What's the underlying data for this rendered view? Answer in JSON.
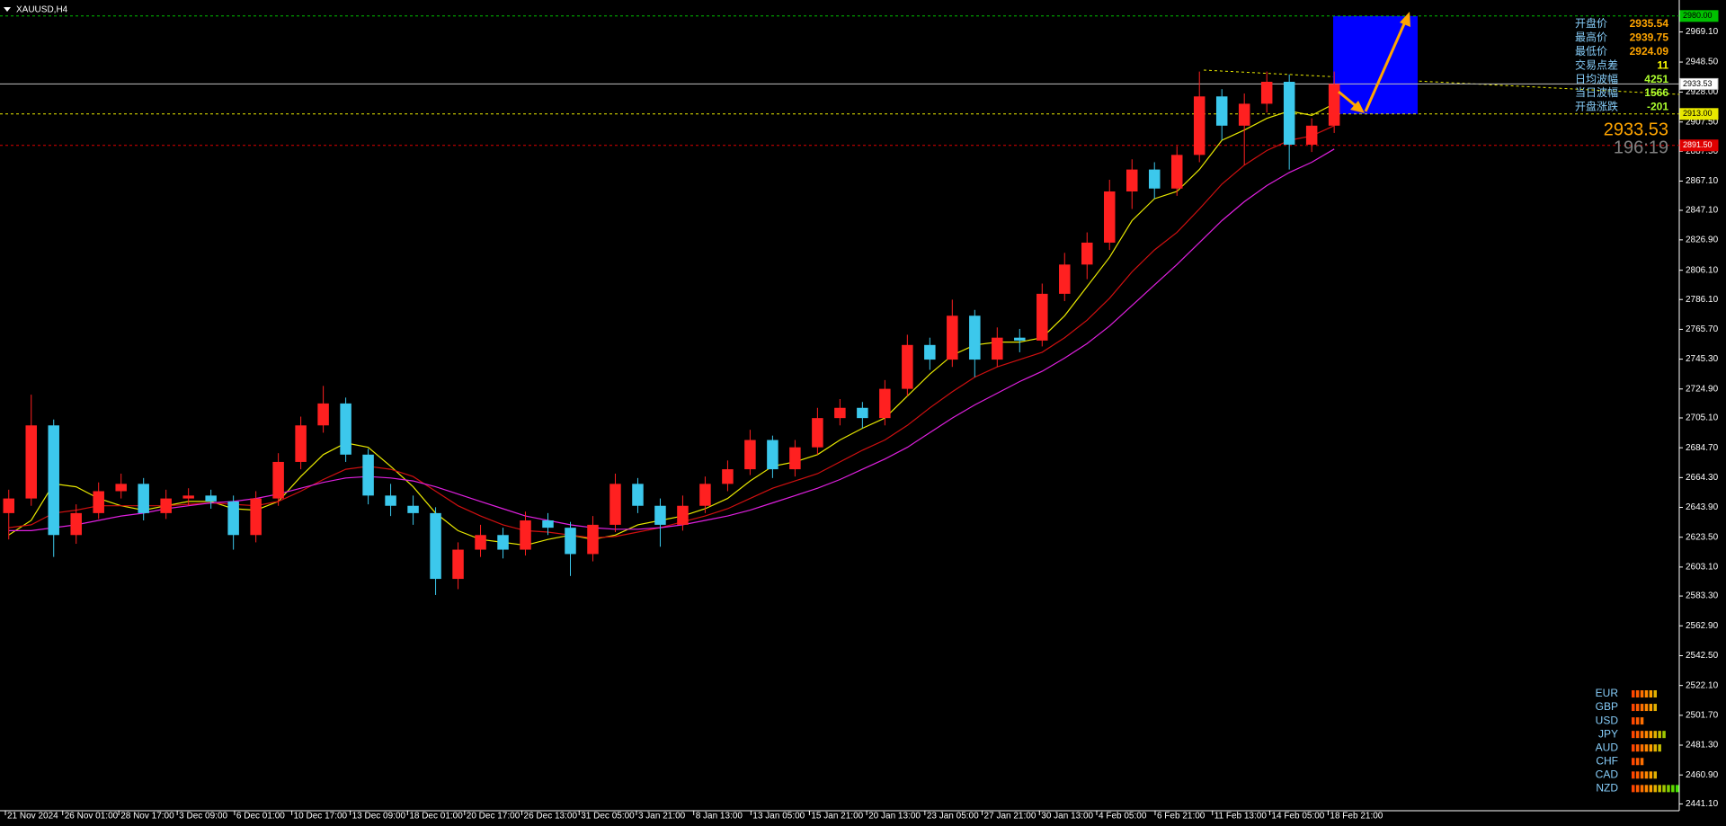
{
  "chart_data": {
    "type": "candlestick",
    "title": "XAUUSD,H4",
    "up_color": "#ff2020",
    "down_color": "#3cc8ec",
    "open": [
      2640,
      2650,
      2700,
      2625,
      2640,
      2655,
      2660,
      2640,
      2650,
      2652,
      2648,
      2625,
      2650,
      2675,
      2700,
      2715,
      2680,
      2652,
      2645,
      2640,
      2595,
      2615,
      2625,
      2615,
      2635,
      2630,
      2612,
      2632,
      2660,
      2645,
      2632,
      2645,
      2660,
      2670,
      2690,
      2670,
      2685,
      2705,
      2712,
      2705,
      2725,
      2755,
      2745,
      2775,
      2745,
      2760,
      2758,
      2790,
      2810,
      2825,
      2860,
      2875,
      2862,
      2885,
      2925,
      2905,
      2920,
      2935,
      2892,
      2905
    ],
    "high": [
      2656,
      2721,
      2704,
      2646,
      2661,
      2667,
      2664,
      2656,
      2657,
      2656,
      2652,
      2655,
      2681,
      2706,
      2727,
      2719,
      2684,
      2660,
      2652,
      2644,
      2620,
      2632,
      2630,
      2641,
      2640,
      2634,
      2638,
      2667,
      2664,
      2650,
      2652,
      2665,
      2676,
      2697,
      2693,
      2690,
      2712,
      2718,
      2716,
      2731,
      2762,
      2760,
      2786,
      2779,
      2767,
      2766,
      2797,
      2818,
      2832,
      2868,
      2882,
      2880,
      2891,
      2942,
      2930,
      2927,
      2942,
      2940,
      2910,
      2942
    ],
    "low": [
      2622,
      2645,
      2610,
      2619,
      2636,
      2650,
      2635,
      2636,
      2645,
      2643,
      2615,
      2620,
      2645,
      2670,
      2695,
      2675,
      2646,
      2638,
      2632,
      2584,
      2588,
      2610,
      2609,
      2611,
      2625,
      2597,
      2607,
      2627,
      2640,
      2617,
      2628,
      2640,
      2655,
      2666,
      2664,
      2665,
      2680,
      2700,
      2698,
      2700,
      2720,
      2738,
      2740,
      2733,
      2740,
      2750,
      2754,
      2785,
      2800,
      2820,
      2848,
      2855,
      2857,
      2880,
      2895,
      2878,
      2914,
      2875,
      2887,
      2900
    ],
    "close": [
      2650,
      2700,
      2625,
      2640,
      2655,
      2660,
      2640,
      2650,
      2652,
      2648,
      2625,
      2650,
      2675,
      2700,
      2715,
      2680,
      2652,
      2645,
      2640,
      2595,
      2615,
      2625,
      2615,
      2635,
      2630,
      2612,
      2632,
      2660,
      2645,
      2632,
      2645,
      2660,
      2670,
      2690,
      2670,
      2685,
      2705,
      2712,
      2705,
      2725,
      2755,
      2745,
      2775,
      2745,
      2760,
      2758,
      2790,
      2810,
      2825,
      2860,
      2875,
      2862,
      2885,
      2925,
      2905,
      2920,
      2935,
      2892,
      2905,
      2933.53
    ],
    "lines": [
      {
        "color": "#e8e800",
        "values": [
          2625,
          2635,
          2660,
          2658,
          2650,
          2645,
          2642,
          2645,
          2648,
          2648,
          2643,
          2642,
          2648,
          2665,
          2680,
          2688,
          2685,
          2672,
          2658,
          2640,
          2628,
          2622,
          2620,
          2618,
          2622,
          2625,
          2622,
          2625,
          2632,
          2635,
          2638,
          2643,
          2650,
          2662,
          2672,
          2675,
          2680,
          2690,
          2698,
          2705,
          2720,
          2735,
          2748,
          2755,
          2757,
          2757,
          2760,
          2775,
          2795,
          2815,
          2840,
          2855,
          2860,
          2875,
          2895,
          2902,
          2910,
          2915,
          2912,
          2920
        ]
      },
      {
        "color": "#d01010",
        "values": [
          2630,
          2632,
          2640,
          2642,
          2645,
          2645,
          2645,
          2645,
          2646,
          2647,
          2646,
          2645,
          2648,
          2655,
          2663,
          2670,
          2672,
          2670,
          2665,
          2655,
          2645,
          2638,
          2632,
          2628,
          2627,
          2625,
          2623,
          2624,
          2627,
          2630,
          2634,
          2638,
          2643,
          2650,
          2657,
          2662,
          2667,
          2675,
          2683,
          2690,
          2700,
          2712,
          2723,
          2733,
          2740,
          2745,
          2750,
          2760,
          2772,
          2787,
          2805,
          2820,
          2832,
          2848,
          2865,
          2878,
          2888,
          2895,
          2898,
          2905
        ]
      },
      {
        "color": "#e020e0",
        "values": [
          2628,
          2628,
          2630,
          2632,
          2635,
          2638,
          2640,
          2643,
          2645,
          2647,
          2648,
          2650,
          2653,
          2657,
          2661,
          2664,
          2665,
          2664,
          2662,
          2658,
          2653,
          2648,
          2643,
          2638,
          2635,
          2632,
          2630,
          2629,
          2629,
          2630,
          2632,
          2635,
          2638,
          2642,
          2647,
          2652,
          2657,
          2663,
          2670,
          2677,
          2685,
          2695,
          2705,
          2714,
          2722,
          2730,
          2737,
          2746,
          2756,
          2768,
          2782,
          2796,
          2810,
          2825,
          2840,
          2853,
          2864,
          2873,
          2880,
          2889
        ]
      }
    ],
    "xlim": [
      -0.39,
      74.36
    ],
    "ylim": [
      2437.3,
      2986.4
    ],
    "xticks": [
      {
        "value": -0.15,
        "label": "21 Nov 2024"
      },
      {
        "value": 2.4,
        "label": "26 Nov 01:00"
      },
      {
        "value": 4.9,
        "label": "28 Nov 17:00"
      },
      {
        "value": 7.5,
        "label": "3 Dec 09:00"
      },
      {
        "value": 10.05,
        "label": "6 Dec 01:00"
      },
      {
        "value": 12.6,
        "label": "10 Dec 17:00"
      },
      {
        "value": 15.2,
        "label": "13 Dec 09:00"
      },
      {
        "value": 17.75,
        "label": "18 Dec 01:00"
      },
      {
        "value": 20.29,
        "label": "20 Dec 17:00"
      },
      {
        "value": 22.84,
        "label": "26 Dec 13:00"
      },
      {
        "value": 25.39,
        "label": "31 Dec 05:00"
      },
      {
        "value": 27.94,
        "label": "3 Jan 21:00"
      },
      {
        "value": 30.49,
        "label": "8 Jan 13:00"
      },
      {
        "value": 33.04,
        "label": "13 Jan 05:00"
      },
      {
        "value": 35.64,
        "label": "15 Jan 21:00"
      },
      {
        "value": 38.19,
        "label": "20 Jan 13:00"
      },
      {
        "value": 40.78,
        "label": "23 Jan 05:00"
      },
      {
        "value": 43.33,
        "label": "27 Jan 21:00"
      },
      {
        "value": 45.88,
        "label": "30 Jan 13:00"
      },
      {
        "value": 48.43,
        "label": "4 Feb 05:00"
      },
      {
        "value": 51.03,
        "label": "6 Feb 21:00"
      },
      {
        "value": 53.58,
        "label": "11 Feb 13:00"
      },
      {
        "value": 56.13,
        "label": "14 Feb 05:00"
      },
      {
        "value": 58.73,
        "label": "18 Feb 21:00"
      }
    ],
    "yticks": [
      {
        "value": 2969.1,
        "label": "2969.10"
      },
      {
        "value": 2948.5,
        "label": "2948.50"
      },
      {
        "value": 2928.0,
        "label": "2928.00"
      },
      {
        "value": 2907.5,
        "label": "2907.50"
      },
      {
        "value": 2887.5,
        "label": "2887.50"
      },
      {
        "value": 2867.1,
        "label": "2867.10"
      },
      {
        "value": 2847.1,
        "label": "2847.10"
      },
      {
        "value": 2826.9,
        "label": "2826.90"
      },
      {
        "value": 2806.1,
        "label": "2806.10"
      },
      {
        "value": 2786.1,
        "label": "2786.10"
      },
      {
        "value": 2765.7,
        "label": "2765.70"
      },
      {
        "value": 2745.3,
        "label": "2745.30"
      },
      {
        "value": 2724.9,
        "label": "2724.90"
      },
      {
        "value": 2705.1,
        "label": "2705.10"
      },
      {
        "value": 2684.7,
        "label": "2684.70"
      },
      {
        "value": 2664.3,
        "label": "2664.30"
      },
      {
        "value": 2643.9,
        "label": "2643.90"
      },
      {
        "value": 2623.5,
        "label": "2623.50"
      },
      {
        "value": 2603.1,
        "label": "2603.10"
      },
      {
        "value": 2583.3,
        "label": "2583.30"
      },
      {
        "value": 2562.9,
        "label": "2562.90"
      },
      {
        "value": 2542.5,
        "label": "2542.50"
      },
      {
        "value": 2522.1,
        "label": "2522.10"
      },
      {
        "value": 2501.7,
        "label": "2501.70"
      },
      {
        "value": 2481.3,
        "label": "2481.30"
      },
      {
        "value": 2460.9,
        "label": "2460.90"
      },
      {
        "value": 2441.1,
        "label": "2441.10"
      }
    ],
    "hlines": [
      {
        "value": 2980,
        "label": "2980.00",
        "color": "#00c000",
        "dashed": true
      },
      {
        "value": 2933.53,
        "label": "2933.53",
        "color": "#c0c0c0",
        "dashed": false
      },
      {
        "value": 2913,
        "label": "2913.00",
        "color": "#e8e800",
        "dashed": true
      },
      {
        "value": 2891.5,
        "label": "2891.50",
        "color": "#e00000",
        "dashed": true
      }
    ]
  },
  "panel": {
    "rows": [
      {
        "label": "开盘价",
        "value": 2935.54,
        "color": "#ffa500"
      },
      {
        "label": "最高价",
        "value": 2939.75,
        "color": "#ffa500"
      },
      {
        "label": "最低价",
        "value": 2924.09,
        "color": "#ffa500"
      },
      {
        "label": "交易点差",
        "value": 11,
        "color": "#ffff00"
      },
      {
        "label": "日均波幅",
        "value": 4251,
        "color": "#adff2f"
      },
      {
        "label": "当日波幅",
        "value": 1566,
        "color": "#adff2f"
      },
      {
        "label": "开盘涨跌",
        "value": -201,
        "color": "#adff2f"
      }
    ],
    "price": 2933.53,
    "timer": "196:19"
  },
  "strength": [
    {
      "name": "EUR",
      "value": 6
    },
    {
      "name": "GBP",
      "value": 6
    },
    {
      "name": "USD",
      "value": 3
    },
    {
      "name": "JPY",
      "value": 8
    },
    {
      "name": "AUD",
      "value": 7
    },
    {
      "name": "CHF",
      "value": 3
    },
    {
      "name": "CAD",
      "value": 6
    },
    {
      "name": "NZD",
      "value": 11
    }
  ]
}
